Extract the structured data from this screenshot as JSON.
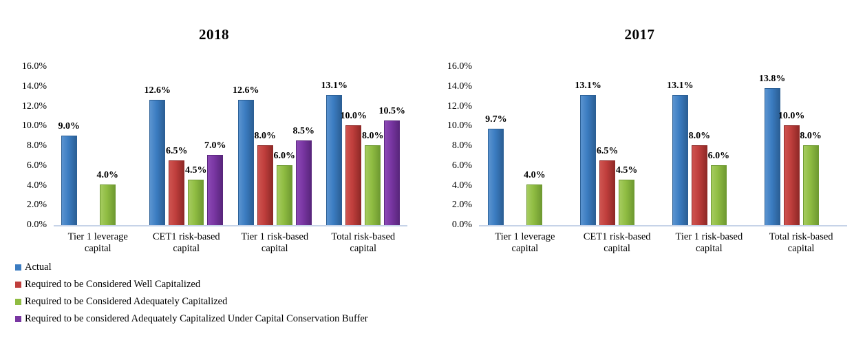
{
  "page": {
    "background": "#ffffff"
  },
  "colors": {
    "blue": {
      "light": "#5B94D0",
      "base": "#3B7CC1",
      "dark": "#2B5F95"
    },
    "red": {
      "light": "#CE5450",
      "base": "#BF3E3C",
      "dark": "#8F2927"
    },
    "green": {
      "light": "#A6CC60",
      "base": "#8FBC42",
      "dark": "#6F9A31"
    },
    "purple": {
      "light": "#8C4AB5",
      "base": "#7936A2",
      "dark": "#59267C"
    },
    "axis_line": "#C6D3E8",
    "text": "#000000"
  },
  "chart_data": [
    {
      "type": "bar",
      "title": "2018",
      "categories": [
        "Tier 1 leverage\ncapital",
        "CET1 risk-based\ncapital",
        "Tier 1 risk-based\ncapital",
        "Total risk-based\ncapital"
      ],
      "yticks": [
        "16.0%",
        "14.0%",
        "12.0%",
        "10.0%",
        "8.0%",
        "6.0%",
        "4.0%",
        "2.0%",
        "0.0%"
      ],
      "ylim": [
        0,
        16
      ],
      "grid": false,
      "xlabel": "",
      "ylabel": "",
      "trailing_empty_slots": 0,
      "legend": {
        "visible": true,
        "position": "bottom-left"
      },
      "series": [
        {
          "name": "Actual",
          "color_key": "blue",
          "values": [
            9.0,
            12.6,
            12.6,
            13.1
          ],
          "labels": [
            "9.0%",
            "12.6%",
            "12.6%",
            "13.1%"
          ]
        },
        {
          "name": "Required to be Considered Well Capitalized",
          "color_key": "red",
          "values": [
            null,
            6.5,
            8.0,
            10.0
          ],
          "labels": [
            null,
            "6.5%",
            "8.0%",
            "10.0%"
          ]
        },
        {
          "name": "Required to be Considered Adequately Capitalized",
          "color_key": "green",
          "values": [
            4.0,
            4.5,
            6.0,
            8.0
          ],
          "labels": [
            "4.0%",
            "4.5%",
            "6.0%",
            "8.0%"
          ]
        },
        {
          "name": "Required to be considered Adequately Capitalized Under Capital Conservation Buffer",
          "color_key": "purple",
          "values": [
            null,
            7.0,
            8.5,
            10.5
          ],
          "labels": [
            null,
            "7.0%",
            "8.5%",
            "10.5%"
          ]
        }
      ]
    },
    {
      "type": "bar",
      "title": "2017",
      "categories": [
        "Tier 1 leverage\ncapital",
        "CET1 risk-based\ncapital",
        "Tier 1 risk-based\ncapital",
        "Total risk-based\ncapital"
      ],
      "yticks": [
        "16.0%",
        "14.0%",
        "12.0%",
        "10.0%",
        "8.0%",
        "6.0%",
        "4.0%",
        "2.0%",
        "0.0%"
      ],
      "ylim": [
        0,
        16
      ],
      "grid": false,
      "xlabel": "",
      "ylabel": "",
      "trailing_empty_slots": 1,
      "legend": {
        "visible": false,
        "position": "none"
      },
      "series": [
        {
          "name": "Actual",
          "color_key": "blue",
          "values": [
            9.7,
            13.1,
            13.1,
            13.8
          ],
          "labels": [
            "9.7%",
            "13.1%",
            "13.1%",
            "13.8%"
          ]
        },
        {
          "name": "Required to be Considered Well Capitalized",
          "color_key": "red",
          "values": [
            null,
            6.5,
            8.0,
            10.0
          ],
          "labels": [
            null,
            "6.5%",
            "8.0%",
            "10.0%"
          ]
        },
        {
          "name": "Required to be Considered Adequately Capitalized",
          "color_key": "green",
          "values": [
            4.0,
            4.5,
            6.0,
            8.0
          ],
          "labels": [
            "4.0%",
            "4.5%",
            "6.0%",
            "8.0%"
          ]
        }
      ]
    }
  ]
}
